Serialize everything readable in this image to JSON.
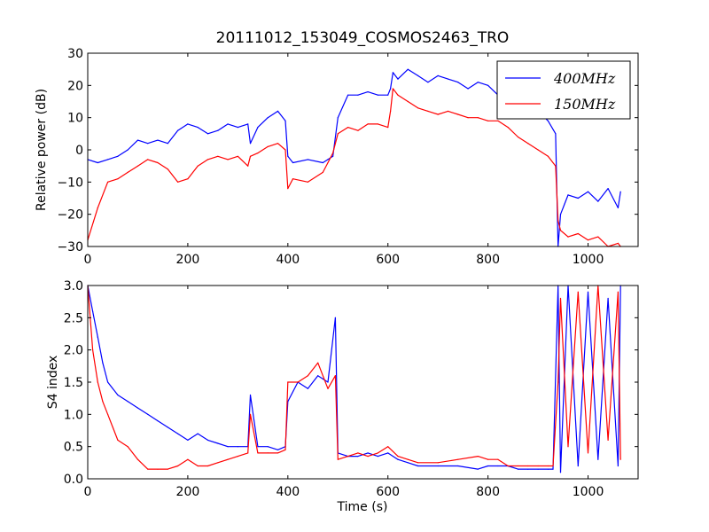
{
  "chart_data": [
    {
      "type": "line",
      "title": "20111012_153049_COSMOS2463_TRO",
      "xlabel": "",
      "ylabel": "Relative power (dB)",
      "xlim": [
        0,
        1100
      ],
      "ylim": [
        -30,
        30
      ],
      "xticks": [
        "0",
        "200",
        "400",
        "600",
        "800",
        "1000"
      ],
      "yticks": [
        "30",
        "20",
        "10",
        "0",
        "−10",
        "−20",
        "−30"
      ],
      "grid": false,
      "legend": "top-right",
      "series": [
        {
          "name": "400MHz",
          "color": "#0000ff",
          "x": [
            0,
            20,
            40,
            60,
            80,
            100,
            120,
            140,
            160,
            180,
            200,
            220,
            240,
            260,
            280,
            300,
            320,
            325,
            340,
            360,
            380,
            395,
            400,
            410,
            440,
            470,
            480,
            490,
            500,
            520,
            540,
            560,
            580,
            600,
            605,
            610,
            620,
            640,
            660,
            680,
            700,
            720,
            740,
            760,
            780,
            800,
            820,
            840,
            860,
            880,
            900,
            920,
            935,
            940,
            945,
            960,
            980,
            1000,
            1020,
            1040,
            1060,
            1065
          ],
          "values": [
            -3,
            -4,
            -3,
            -2,
            0,
            3,
            2,
            3,
            2,
            6,
            8,
            7,
            5,
            6,
            8,
            7,
            8,
            2,
            7,
            10,
            12,
            9,
            -2,
            -4,
            -3,
            -4,
            -3,
            -2,
            10,
            17,
            17,
            18,
            17,
            17,
            19,
            24,
            22,
            25,
            23,
            21,
            23,
            22,
            21,
            19,
            21,
            20,
            17,
            18,
            15,
            14,
            12,
            9,
            5,
            -30,
            -20,
            -14,
            -15,
            -13,
            -16,
            -12,
            -18,
            -13
          ]
        },
        {
          "name": "150MHz",
          "color": "#ff0000",
          "x": [
            0,
            20,
            40,
            60,
            80,
            100,
            120,
            140,
            160,
            180,
            200,
            220,
            240,
            260,
            280,
            300,
            320,
            325,
            340,
            360,
            380,
            395,
            400,
            410,
            440,
            470,
            480,
            490,
            500,
            520,
            540,
            560,
            580,
            600,
            605,
            610,
            620,
            640,
            660,
            680,
            700,
            720,
            740,
            760,
            780,
            800,
            820,
            840,
            860,
            880,
            900,
            920,
            935,
            940,
            945,
            960,
            980,
            1000,
            1020,
            1040,
            1060,
            1065
          ],
          "values": [
            -28,
            -18,
            -10,
            -9,
            -7,
            -5,
            -3,
            -4,
            -6,
            -10,
            -9,
            -5,
            -3,
            -2,
            -3,
            -2,
            -5,
            -2,
            -1,
            1,
            2,
            0,
            -12,
            -9,
            -10,
            -7,
            -4,
            -1,
            5,
            7,
            6,
            8,
            8,
            7,
            12,
            19,
            17,
            15,
            13,
            12,
            11,
            12,
            11,
            10,
            10,
            9,
            9,
            7,
            4,
            2,
            0,
            -2,
            -5,
            -22,
            -25,
            -27,
            -26,
            -28,
            -27,
            -30,
            -29,
            -30
          ]
        }
      ]
    },
    {
      "type": "line",
      "title": "",
      "xlabel": "Time (s)",
      "ylabel": "S4 index",
      "xlim": [
        0,
        1100
      ],
      "ylim": [
        0,
        3
      ],
      "xticks": [
        "0",
        "200",
        "400",
        "600",
        "800",
        "1000"
      ],
      "yticks": [
        "3.0",
        "2.5",
        "2.0",
        "1.5",
        "1.0",
        "0.5",
        "0.0"
      ],
      "grid": false,
      "series": [
        {
          "color": "#0000ff",
          "x": [
            0,
            10,
            20,
            30,
            40,
            60,
            80,
            100,
            120,
            140,
            160,
            180,
            200,
            220,
            240,
            260,
            280,
            300,
            320,
            325,
            340,
            360,
            380,
            395,
            400,
            420,
            440,
            460,
            480,
            495,
            500,
            520,
            540,
            560,
            580,
            600,
            620,
            640,
            660,
            700,
            740,
            780,
            800,
            820,
            840,
            860,
            880,
            900,
            920,
            930,
            940,
            945,
            960,
            980,
            1000,
            1020,
            1040,
            1060,
            1065
          ],
          "values": [
            3.0,
            2.6,
            2.2,
            1.8,
            1.5,
            1.3,
            1.2,
            1.1,
            1.0,
            0.9,
            0.8,
            0.7,
            0.6,
            0.7,
            0.6,
            0.55,
            0.5,
            0.5,
            0.5,
            1.3,
            0.5,
            0.5,
            0.45,
            0.5,
            1.2,
            1.5,
            1.4,
            1.6,
            1.5,
            2.5,
            0.4,
            0.35,
            0.35,
            0.4,
            0.35,
            0.4,
            0.3,
            0.25,
            0.2,
            0.2,
            0.2,
            0.15,
            0.2,
            0.2,
            0.2,
            0.15,
            0.15,
            0.15,
            0.15,
            0.15,
            3.0,
            0.1,
            3.0,
            0.2,
            2.9,
            0.3,
            2.8,
            0.2,
            3.0
          ]
        },
        {
          "color": "#ff0000",
          "x": [
            0,
            10,
            20,
            30,
            40,
            60,
            80,
            100,
            120,
            140,
            160,
            180,
            200,
            220,
            240,
            260,
            280,
            300,
            320,
            325,
            340,
            360,
            380,
            395,
            400,
            420,
            440,
            460,
            480,
            495,
            500,
            520,
            540,
            560,
            580,
            600,
            620,
            640,
            660,
            700,
            740,
            780,
            800,
            820,
            840,
            860,
            880,
            900,
            920,
            930,
            940,
            945,
            960,
            980,
            1000,
            1020,
            1040,
            1060,
            1065
          ],
          "values": [
            3.0,
            2.0,
            1.5,
            1.2,
            1.0,
            0.6,
            0.5,
            0.3,
            0.15,
            0.15,
            0.15,
            0.2,
            0.3,
            0.2,
            0.2,
            0.25,
            0.3,
            0.35,
            0.4,
            1.0,
            0.4,
            0.4,
            0.4,
            0.45,
            1.5,
            1.5,
            1.6,
            1.8,
            1.4,
            1.6,
            0.3,
            0.35,
            0.4,
            0.35,
            0.4,
            0.5,
            0.35,
            0.3,
            0.25,
            0.25,
            0.3,
            0.35,
            0.3,
            0.3,
            0.2,
            0.2,
            0.2,
            0.2,
            0.2,
            0.2,
            1.5,
            2.8,
            0.5,
            2.9,
            0.4,
            3.0,
            0.6,
            2.9,
            0.3
          ]
        }
      ]
    }
  ]
}
